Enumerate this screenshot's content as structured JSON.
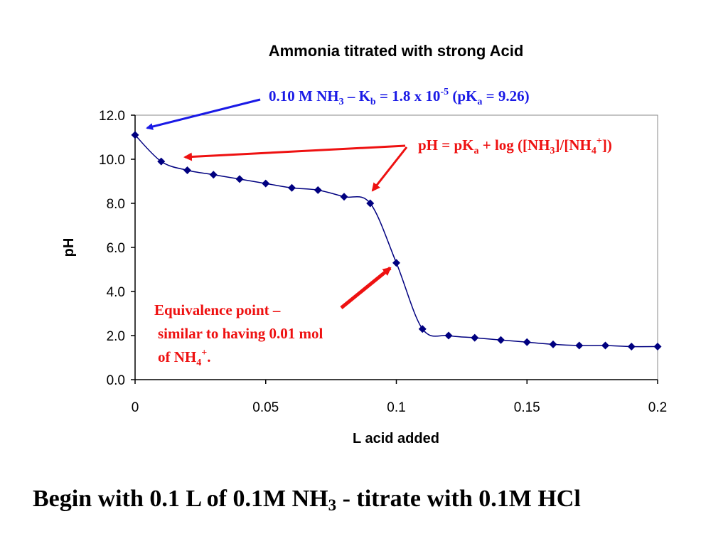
{
  "chart_data": {
    "type": "line",
    "title": "Ammonia titrated with strong Acid",
    "xlabel": "L acid added",
    "ylabel": "pH",
    "xlim": [
      0,
      0.2
    ],
    "ylim": [
      0,
      12
    ],
    "x_ticks": [
      "0",
      "0.05",
      "0.1",
      "0.15",
      "0.2"
    ],
    "y_ticks": [
      "0.0",
      "2.0",
      "4.0",
      "6.0",
      "8.0",
      "10.0",
      "12.0"
    ],
    "grid": false,
    "legend": "none",
    "series": [
      {
        "color": "#000080",
        "marker": "diamond",
        "smooth": true,
        "x": [
          0,
          0.01,
          0.02,
          0.03,
          0.04,
          0.05,
          0.06,
          0.07,
          0.08,
          0.09,
          0.1,
          0.11,
          0.12,
          0.13,
          0.14,
          0.15,
          0.16,
          0.17,
          0.18,
          0.19,
          0.2
        ],
        "y": [
          11.1,
          9.9,
          9.5,
          9.3,
          9.1,
          8.9,
          8.7,
          8.6,
          8.3,
          8.0,
          5.3,
          2.3,
          2.0,
          1.9,
          1.8,
          1.7,
          1.6,
          1.55,
          1.55,
          1.5,
          1.5
        ]
      }
    ],
    "annotations": [
      {
        "id": "initial",
        "color": "#1a1ae6",
        "parts": [
          {
            "t": "0.10 M NH"
          },
          {
            "t": "3",
            "s": "sub"
          },
          {
            "t": " – K"
          },
          {
            "t": "b",
            "s": "sub"
          },
          {
            "t": " = 1.8 x 10"
          },
          {
            "t": "-5",
            "s": "sup"
          },
          {
            "t": "  (pK"
          },
          {
            "t": "a",
            "s": "sub"
          },
          {
            "t": " = 9.26)"
          }
        ],
        "points_to": [
          {
            "x": 0,
            "y": 11.1
          }
        ]
      },
      {
        "id": "buffer",
        "color": "#ee1111",
        "parts": [
          {
            "t": "pH = pK"
          },
          {
            "t": "a",
            "s": "sub"
          },
          {
            "t": " + log ([NH"
          },
          {
            "t": "3",
            "s": "sub"
          },
          {
            "t": "]/[NH"
          },
          {
            "t": "4",
            "s": "sub"
          },
          {
            "t": "+",
            "s": "sup"
          },
          {
            "t": "])"
          }
        ],
        "points_to": [
          {
            "x": 0.02,
            "y": 10.4
          },
          {
            "x": 0.09,
            "y": 8.4
          }
        ]
      },
      {
        "id": "equivalence",
        "color": "#ee1111",
        "lines": [
          [
            {
              "t": "Equivalence point –"
            }
          ],
          [
            {
              "t": "similar to having 0.01 mol"
            }
          ],
          [
            {
              "t": "of NH"
            },
            {
              "t": "4",
              "s": "sub"
            },
            {
              "t": "+",
              "s": "sup"
            },
            {
              "t": "."
            }
          ]
        ],
        "points_to": [
          {
            "x": 0.1,
            "y": 5.4
          }
        ]
      }
    ]
  },
  "caption": {
    "text_before": "Begin with 0.1 L of 0.1M NH",
    "subscript": "3",
    "text_after": " - titrate with 0.1M HCl"
  }
}
